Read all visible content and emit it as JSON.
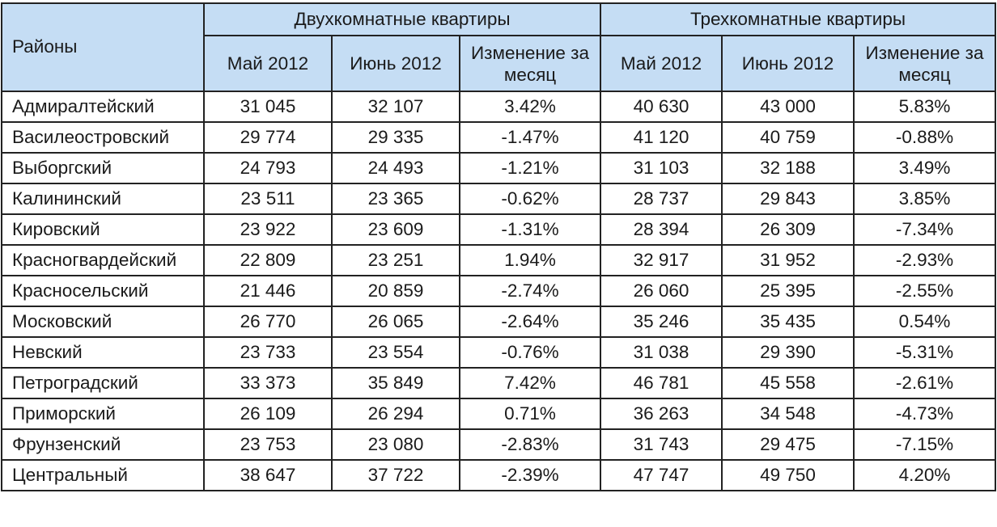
{
  "table": {
    "districts_header": "Районы",
    "groups": [
      {
        "title": "Двухкомнатные квартиры",
        "columns": [
          "Май 2012",
          "Июнь 2012",
          "Изменение за месяц"
        ]
      },
      {
        "title": "Трехкомнатные квартиры",
        "columns": [
          "Май 2012",
          "Июнь 2012",
          "Изменение за месяц"
        ]
      }
    ],
    "rows": [
      {
        "district": "Адмиралтейский",
        "two_may": "31 045",
        "two_june": "32 107",
        "two_change": "3.42%",
        "three_may": "40 630",
        "three_june": "43 000",
        "three_change": "5.83%"
      },
      {
        "district": "Василеостровский",
        "two_may": "29 774",
        "two_june": "29 335",
        "two_change": "-1.47%",
        "three_may": "41 120",
        "three_june": "40 759",
        "three_change": "-0.88%"
      },
      {
        "district": "Выборгский",
        "two_may": "24 793",
        "two_june": "24 493",
        "two_change": "-1.21%",
        "three_may": "31 103",
        "three_june": "32 188",
        "three_change": "3.49%"
      },
      {
        "district": "Калининский",
        "two_may": "23 511",
        "two_june": "23 365",
        "two_change": "-0.62%",
        "three_may": "28 737",
        "three_june": "29 843",
        "three_change": "3.85%"
      },
      {
        "district": "Кировский",
        "two_may": "23 922",
        "two_june": "23 609",
        "two_change": "-1.31%",
        "three_may": "28 394",
        "three_june": "26 309",
        "three_change": "-7.34%"
      },
      {
        "district": "Красногвардейский",
        "two_may": "22 809",
        "two_june": "23 251",
        "two_change": "1.94%",
        "three_may": "32 917",
        "three_june": "31 952",
        "three_change": "-2.93%"
      },
      {
        "district": "Красносельский",
        "two_may": "21 446",
        "two_june": "20 859",
        "two_change": "-2.74%",
        "three_may": "26 060",
        "three_june": "25 395",
        "three_change": "-2.55%"
      },
      {
        "district": "Московский",
        "two_may": "26 770",
        "two_june": "26 065",
        "two_change": "-2.64%",
        "three_may": "35 246",
        "three_june": "35 435",
        "three_change": "0.54%"
      },
      {
        "district": "Невский",
        "two_may": "23 733",
        "two_june": "23 554",
        "two_change": "-0.76%",
        "three_may": "31 038",
        "three_june": "29 390",
        "three_change": "-5.31%"
      },
      {
        "district": "Петроградский",
        "two_may": "33 373",
        "two_june": "35 849",
        "two_change": "7.42%",
        "three_may": "46 781",
        "three_june": "45 558",
        "three_change": "-2.61%"
      },
      {
        "district": "Приморский",
        "two_may": "26 109",
        "two_june": "26 294",
        "two_change": "0.71%",
        "three_may": "36 263",
        "three_june": "34 548",
        "three_change": "-4.73%"
      },
      {
        "district": "Фрунзенский",
        "two_may": "23 753",
        "two_june": "23 080",
        "two_change": "-2.83%",
        "three_may": "31 743",
        "three_june": "29 475",
        "three_change": "-7.15%"
      },
      {
        "district": "Центральный",
        "two_may": "38 647",
        "two_june": "37 722",
        "two_change": "-2.39%",
        "three_may": "47 747",
        "three_june": "49 750",
        "three_change": "4.20%"
      }
    ]
  },
  "colors": {
    "header_background": "#c5ddf4",
    "border": "#222222",
    "text": "#1a1a1a"
  }
}
